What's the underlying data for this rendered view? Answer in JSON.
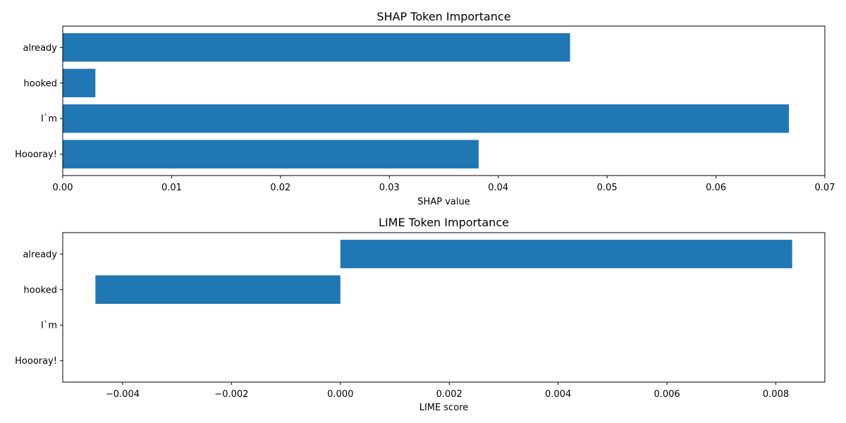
{
  "chart_data": [
    {
      "type": "bar",
      "orientation": "horizontal",
      "title": "SHAP Token Importance",
      "xlabel": "SHAP value",
      "ylabel": "",
      "categories": [
        "already",
        "hooked",
        "I`m",
        "Hoooray!"
      ],
      "values": [
        0.0466,
        0.003,
        0.0667,
        0.0382
      ],
      "xlim": [
        0,
        0.07
      ],
      "xticks": [
        0,
        0.01,
        0.02,
        0.03,
        0.04,
        0.05,
        0.06,
        0.07
      ],
      "xtick_labels": [
        "0.00",
        "0.01",
        "0.02",
        "0.03",
        "0.04",
        "0.05",
        "0.06",
        "0.07"
      ],
      "grid": false,
      "bar_color": "#1f77b4"
    },
    {
      "type": "bar",
      "orientation": "horizontal",
      "title": "LIME Token Importance",
      "xlabel": "LIME score",
      "ylabel": "",
      "categories": [
        "already",
        "hooked",
        "I`m",
        "Hoooray!"
      ],
      "values": [
        0.0083,
        -0.0045,
        0,
        0
      ],
      "xlim": [
        -0.0051,
        0.0089
      ],
      "xticks": [
        -0.004,
        -0.002,
        0,
        0.002,
        0.004,
        0.006,
        0.008
      ],
      "xtick_labels": [
        "−0.004",
        "−0.002",
        "0.000",
        "0.002",
        "0.004",
        "0.006",
        "0.008"
      ],
      "grid": false,
      "bar_color": "#1f77b4"
    }
  ]
}
